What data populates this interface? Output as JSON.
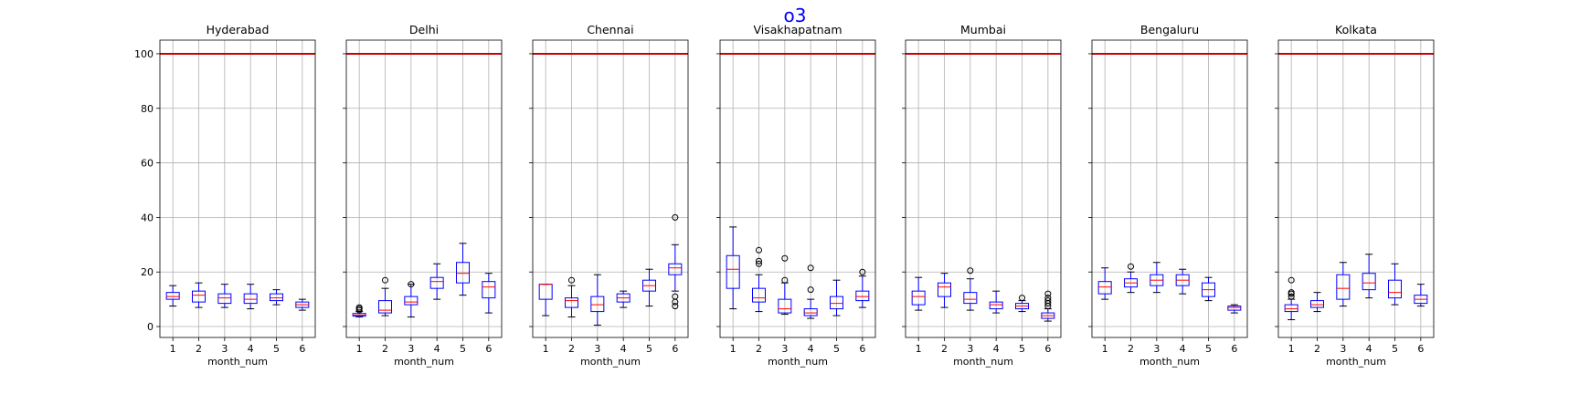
{
  "chart_data": {
    "type": "box",
    "title": "o3",
    "colors": {
      "title": "#0000ff",
      "box": "#0000ff",
      "median": "#ff0000",
      "whisker": "#000000",
      "reference_line": "#cc0000",
      "grid": "#b0b0b0"
    },
    "grid": true,
    "reference_line": 100,
    "ylim": [
      -4,
      105
    ],
    "yticks": [
      0,
      20,
      40,
      60,
      80,
      100
    ],
    "xlabel": "month_num",
    "categories": [
      "1",
      "2",
      "3",
      "4",
      "5",
      "6"
    ],
    "panels": [
      {
        "title": "Hyderabad",
        "boxes": [
          {
            "whislo": 7.5,
            "q1": 10,
            "med": 11,
            "q3": 12.5,
            "whishi": 15,
            "fliers": []
          },
          {
            "whislo": 7,
            "q1": 9,
            "med": 11.5,
            "q3": 13,
            "whishi": 16,
            "fliers": []
          },
          {
            "whislo": 7,
            "q1": 8.5,
            "med": 10.5,
            "q3": 12,
            "whishi": 15.5,
            "fliers": []
          },
          {
            "whislo": 6.5,
            "q1": 8.5,
            "med": 10,
            "q3": 12,
            "whishi": 15.5,
            "fliers": []
          },
          {
            "whislo": 8,
            "q1": 9.5,
            "med": 10.5,
            "q3": 12,
            "whishi": 13.5,
            "fliers": []
          },
          {
            "whislo": 6,
            "q1": 7,
            "med": 8,
            "q3": 9,
            "whishi": 10,
            "fliers": []
          }
        ]
      },
      {
        "title": "Delhi",
        "boxes": [
          {
            "whislo": 3.5,
            "q1": 3.8,
            "med": 4.2,
            "q3": 4.8,
            "whishi": 5.5,
            "fliers": [
              6,
              6.5,
              7
            ]
          },
          {
            "whislo": 4,
            "q1": 5,
            "med": 6,
            "q3": 9.5,
            "whishi": 14,
            "fliers": [
              17
            ]
          },
          {
            "whislo": 3.5,
            "q1": 8,
            "med": 9,
            "q3": 11,
            "whishi": 15.5,
            "fliers": [
              15.5
            ]
          },
          {
            "whislo": 10,
            "q1": 14,
            "med": 16.5,
            "q3": 18,
            "whishi": 23,
            "fliers": []
          },
          {
            "whislo": 11.5,
            "q1": 16,
            "med": 19.5,
            "q3": 23.5,
            "whishi": 30.5,
            "fliers": []
          },
          {
            "whislo": 5,
            "q1": 10.5,
            "med": 14.5,
            "q3": 16.5,
            "whishi": 19.5,
            "fliers": []
          }
        ]
      },
      {
        "title": "Chennai",
        "boxes": [
          {
            "whislo": 4,
            "q1": 10,
            "med": 15.5,
            "q3": 15.5,
            "whishi": 15.5,
            "fliers": []
          },
          {
            "whislo": 3.5,
            "q1": 7,
            "med": 9.5,
            "q3": 10.5,
            "whishi": 15,
            "fliers": [
              17
            ]
          },
          {
            "whislo": 0.5,
            "q1": 5.5,
            "med": 8,
            "q3": 11,
            "whishi": 19,
            "fliers": []
          },
          {
            "whislo": 7,
            "q1": 9,
            "med": 10.5,
            "q3": 12,
            "whishi": 13,
            "fliers": []
          },
          {
            "whislo": 7.5,
            "q1": 13,
            "med": 15,
            "q3": 17,
            "whishi": 21,
            "fliers": []
          },
          {
            "whislo": 13,
            "q1": 19,
            "med": 21.5,
            "q3": 23,
            "whishi": 30,
            "fliers": [
              40,
              11,
              9,
              7.5
            ]
          }
        ]
      },
      {
        "title": "Visakhapatnam",
        "boxes": [
          {
            "whislo": 6.5,
            "q1": 14,
            "med": 21,
            "q3": 26,
            "whishi": 36.5,
            "fliers": []
          },
          {
            "whislo": 5.5,
            "q1": 9,
            "med": 10.5,
            "q3": 14,
            "whishi": 19,
            "fliers": [
              28,
              24,
              23
            ]
          },
          {
            "whislo": 4.5,
            "q1": 5,
            "med": 6.5,
            "q3": 10,
            "whishi": 16,
            "fliers": [
              25,
              17
            ]
          },
          {
            "whislo": 3,
            "q1": 4,
            "med": 5,
            "q3": 6.5,
            "whishi": 10,
            "fliers": [
              21.5,
              13.5
            ]
          },
          {
            "whislo": 4,
            "q1": 6.5,
            "med": 8.5,
            "q3": 11,
            "whishi": 17,
            "fliers": []
          },
          {
            "whislo": 7,
            "q1": 9.5,
            "med": 11,
            "q3": 13,
            "whishi": 18.5,
            "fliers": [
              20
            ]
          }
        ]
      },
      {
        "title": "Mumbai",
        "boxes": [
          {
            "whislo": 6,
            "q1": 8,
            "med": 11,
            "q3": 13,
            "whishi": 18,
            "fliers": []
          },
          {
            "whislo": 7,
            "q1": 11,
            "med": 14.5,
            "q3": 16,
            "whishi": 19.5,
            "fliers": []
          },
          {
            "whislo": 6,
            "q1": 8.5,
            "med": 10,
            "q3": 12.5,
            "whishi": 17.5,
            "fliers": [
              20.5
            ]
          },
          {
            "whislo": 5,
            "q1": 6.5,
            "med": 8,
            "q3": 9,
            "whishi": 13,
            "fliers": []
          },
          {
            "whislo": 5.5,
            "q1": 6.5,
            "med": 7.5,
            "q3": 8.5,
            "whishi": 9.5,
            "fliers": [
              10.5
            ]
          },
          {
            "whislo": 2,
            "q1": 3,
            "med": 4,
            "q3": 5,
            "whishi": 6.5,
            "fliers": [
              7.5,
              8.5,
              9.5,
              10.5,
              12
            ]
          }
        ]
      },
      {
        "title": "Bengaluru",
        "boxes": [
          {
            "whislo": 10,
            "q1": 12,
            "med": 14.5,
            "q3": 16.5,
            "whishi": 21.5,
            "fliers": []
          },
          {
            "whislo": 12.5,
            "q1": 14.5,
            "med": 16,
            "q3": 17.5,
            "whishi": 20,
            "fliers": [
              22
            ]
          },
          {
            "whislo": 12.5,
            "q1": 15,
            "med": 17,
            "q3": 19,
            "whishi": 23.5,
            "fliers": []
          },
          {
            "whislo": 12,
            "q1": 15,
            "med": 17,
            "q3": 19,
            "whishi": 21,
            "fliers": []
          },
          {
            "whislo": 9.5,
            "q1": 11,
            "med": 13.5,
            "q3": 16,
            "whishi": 18,
            "fliers": []
          },
          {
            "whislo": 5,
            "q1": 6,
            "med": 7,
            "q3": 7.5,
            "whishi": 8,
            "fliers": []
          }
        ]
      },
      {
        "title": "Kolkata",
        "boxes": [
          {
            "whislo": 2.5,
            "q1": 5.5,
            "med": 6.5,
            "q3": 8,
            "whishi": 10,
            "fliers": [
              11,
              12,
              12.5,
              17
            ]
          },
          {
            "whislo": 5.5,
            "q1": 7,
            "med": 8,
            "q3": 9.5,
            "whishi": 12.5,
            "fliers": []
          },
          {
            "whislo": 7.5,
            "q1": 10,
            "med": 14,
            "q3": 19,
            "whishi": 23.5,
            "fliers": []
          },
          {
            "whislo": 10.5,
            "q1": 13.5,
            "med": 16,
            "q3": 19.5,
            "whishi": 26.5,
            "fliers": []
          },
          {
            "whislo": 8,
            "q1": 10.5,
            "med": 12.5,
            "q3": 17,
            "whishi": 23,
            "fliers": []
          },
          {
            "whislo": 7.5,
            "q1": 8.5,
            "med": 10,
            "q3": 11.5,
            "whishi": 15.5,
            "fliers": []
          }
        ]
      }
    ]
  }
}
